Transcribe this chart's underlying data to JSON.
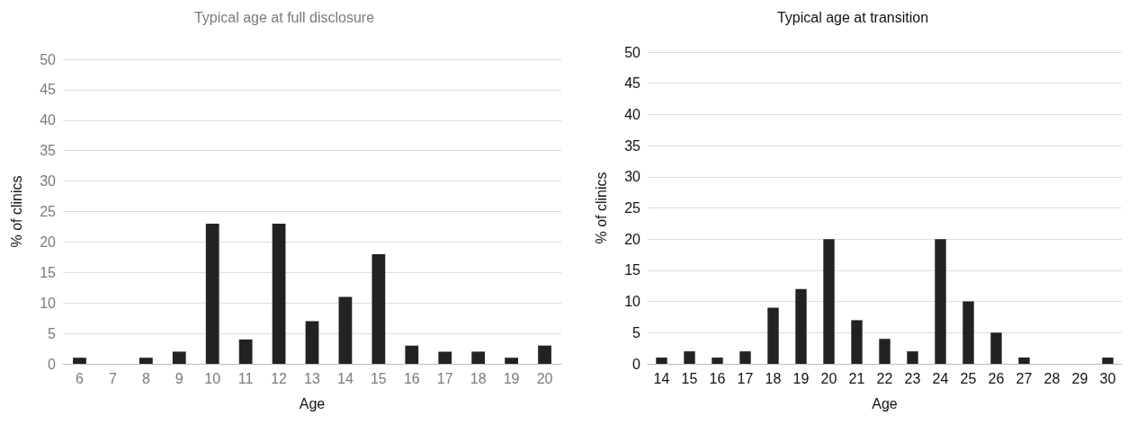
{
  "chart_data": [
    {
      "type": "bar",
      "title": "Typical age at full disclosure",
      "xlabel": "Age",
      "ylabel": "% of clinics",
      "categories": [
        "6",
        "7",
        "8",
        "9",
        "10",
        "11",
        "12",
        "13",
        "14",
        "15",
        "16",
        "17",
        "18",
        "19",
        "20"
      ],
      "values": [
        1,
        0,
        1,
        2,
        23,
        4,
        23,
        7,
        11,
        18,
        3,
        2,
        2,
        1,
        3
      ],
      "color": "#222222",
      "ylim": [
        0,
        50
      ],
      "yticks": [
        0,
        5,
        10,
        15,
        20,
        25,
        30,
        35,
        40,
        45,
        50
      ],
      "grid": "y"
    },
    {
      "type": "bar",
      "title": "Typical age at transition",
      "xlabel": "Age",
      "ylabel": "% of clinics",
      "categories": [
        "14",
        "15",
        "16",
        "17",
        "18",
        "19",
        "20",
        "21",
        "22",
        "23",
        "24",
        "25",
        "26",
        "27",
        "28",
        "29",
        "30"
      ],
      "values": [
        1,
        2,
        1,
        2,
        9,
        12,
        20,
        7,
        4,
        2,
        20,
        10,
        5,
        1,
        0,
        0,
        1
      ],
      "color": "#222222",
      "ylim": [
        0,
        50
      ],
      "yticks": [
        0,
        5,
        10,
        15,
        20,
        25,
        30,
        35,
        40,
        45,
        50
      ],
      "grid": "y"
    }
  ]
}
